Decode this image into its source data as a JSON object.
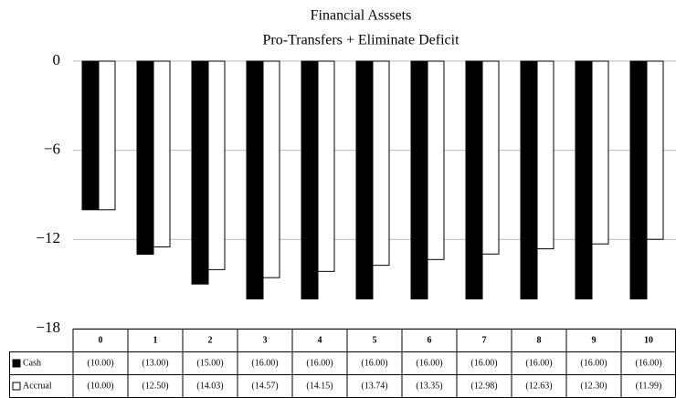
{
  "chart_data": {
    "type": "bar",
    "title": "Financial Asssets",
    "subtitle": "Pro-Transfers + Eliminate Deficit",
    "categories": [
      "0",
      "1",
      "2",
      "3",
      "4",
      "5",
      "6",
      "7",
      "8",
      "9",
      "10"
    ],
    "series": [
      {
        "name": "Cash",
        "color": "#000000",
        "values": [
          -10,
          -13,
          -15,
          -16,
          -16,
          -16,
          -16,
          -16,
          -16,
          -16,
          -16
        ],
        "value_labels": [
          "(10.00)",
          "(13.00)",
          "(15.00)",
          "(16.00)",
          "(16.00)",
          "(16.00)",
          "(16.00)",
          "(16.00)",
          "(16.00)",
          "(16.00)",
          "(16.00)"
        ]
      },
      {
        "name": "Accrual",
        "color": "#ffffff",
        "values": [
          -10,
          -12.5,
          -14.03,
          -14.57,
          -14.15,
          -13.74,
          -13.35,
          -12.98,
          -12.63,
          -12.3,
          -11.99
        ],
        "value_labels": [
          "(10.00)",
          "(12.50)",
          "(14.03)",
          "(14.57)",
          "(14.15)",
          "(13.74)",
          "(13.35)",
          "(12.98)",
          "(12.63)",
          "(12.30)",
          "(11.99)"
        ]
      }
    ],
    "ylim": [
      -18,
      0
    ],
    "yticks": [
      {
        "value": 0,
        "label": "0"
      },
      {
        "value": -6,
        "label": "−6"
      },
      {
        "value": -12,
        "label": "−12"
      },
      {
        "value": -18,
        "label": "−18"
      }
    ],
    "grid": true
  }
}
